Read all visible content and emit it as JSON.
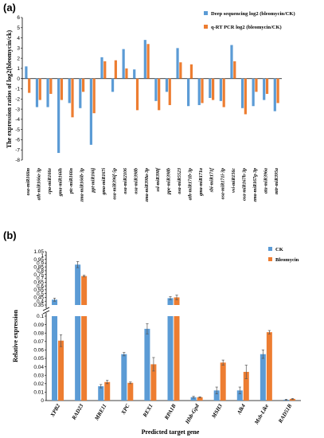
{
  "colors": {
    "blue": "#5b9bd5",
    "orange": "#ed7d31",
    "axis": "#000000",
    "errorbar": "#555555"
  },
  "chart_data": [
    {
      "panel_label": "(a)",
      "type": "bar",
      "ylabel": "The expression ratios of log2(bleomycin/ck)",
      "ylim": [
        -8,
        6
      ],
      "yticks": [
        -8,
        -7,
        -6,
        -5,
        -4,
        -3,
        -2,
        -1,
        0,
        1,
        2,
        3,
        4,
        5,
        6
      ],
      "legend_position": "top-right",
      "categories": [
        "osa-miR166m",
        "ath-miR166a-3p",
        "cpa-miR166e",
        "gma-miR166h",
        "ptc-miR166n",
        "zma-miR166b-3p",
        "ppt-miR166j",
        "gma-miR167i",
        "osa-miR396f-5p",
        "osa-miR2106",
        "osa-miR398b",
        "zma-miR398a-3p",
        "ssl-miR398f",
        "ppe-miR398b",
        "osa-miR5523",
        "ath-miR171b-3p",
        "gma-miR171a",
        "sbi-miR171f",
        "osa-miR171i-3p",
        "vvi-miR156c",
        "osa-miR167h-3p",
        "zma-miR167g-3p",
        "ata-miR396a",
        "mtr-miR395a"
      ],
      "series": [
        {
          "name": "Deep sequencing log2 (bleomycin/CK)",
          "values": [
            1.2,
            -2.8,
            -2.8,
            -7.3,
            -2.4,
            -2.9,
            -6.5,
            2.1,
            -1.3,
            2.9,
            0.9,
            3.8,
            -2.2,
            -1.3,
            3.0,
            -2.7,
            -2.6,
            -1.9,
            -2.2,
            3.3,
            -2.9,
            -2.7,
            -2.1,
            -3.2
          ]
        },
        {
          "name": "q-RT PCR log2 (bleomycin/CK)",
          "values": [
            -1.4,
            -2.1,
            -1.5,
            -2.1,
            -3.8,
            -1.3,
            -3.4,
            1.7,
            1.8,
            1.0,
            -3.1,
            3.4,
            -3.1,
            -2.6,
            1.6,
            1.4,
            -2.4,
            -2.1,
            -2.8,
            1.7,
            -3.5,
            -1.3,
            -1.5,
            -2.4
          ]
        }
      ]
    },
    {
      "panel_label": "(b)",
      "type": "bar",
      "xlabel": "Predicted target gene",
      "ylabel": "Relative expression",
      "legend_position": "top-right",
      "y_break": {
        "lower": [
          0,
          0.1
        ],
        "upper": [
          0.35,
          1.05
        ]
      },
      "yticks_lower": [
        0,
        0.01,
        0.02,
        0.03,
        0.04,
        0.05,
        0.06,
        0.07,
        0.08,
        0.09,
        0.1
      ],
      "yticks_upper": [
        0.35,
        0.4,
        0.45,
        0.5,
        0.55,
        0.6,
        0.65,
        0.7,
        0.75,
        0.8,
        0.85,
        0.9,
        0.95,
        1,
        1.05
      ],
      "categories": [
        "XPB2",
        "RAD23",
        "MRE11",
        "XPC",
        "REX1",
        "RPA1B",
        "Hhb-Gpd",
        "MSH3",
        "Alk4",
        "Msh-Like",
        "RAD51B"
      ],
      "series": [
        {
          "name": "CK",
          "values": [
            0.42,
            0.88,
            0.017,
            0.055,
            0.085,
            0.44,
            0.004,
            0.012,
            0.012,
            0.055,
            0.001
          ],
          "errors": [
            0.02,
            0.04,
            0.002,
            0.002,
            0.006,
            0.02,
            0.001,
            0.004,
            0.004,
            0.005,
            0.0005
          ]
        },
        {
          "name": "Bleomycin",
          "values": [
            0.071,
            0.73,
            0.022,
            0.021,
            0.043,
            0.45,
            0.004,
            0.045,
            0.034,
            0.081,
            0.002
          ],
          "errors": [
            0.007,
            0.01,
            0.002,
            0.001,
            0.008,
            0.03,
            0.0005,
            0.003,
            0.008,
            0.002,
            0.0005
          ]
        }
      ]
    }
  ]
}
